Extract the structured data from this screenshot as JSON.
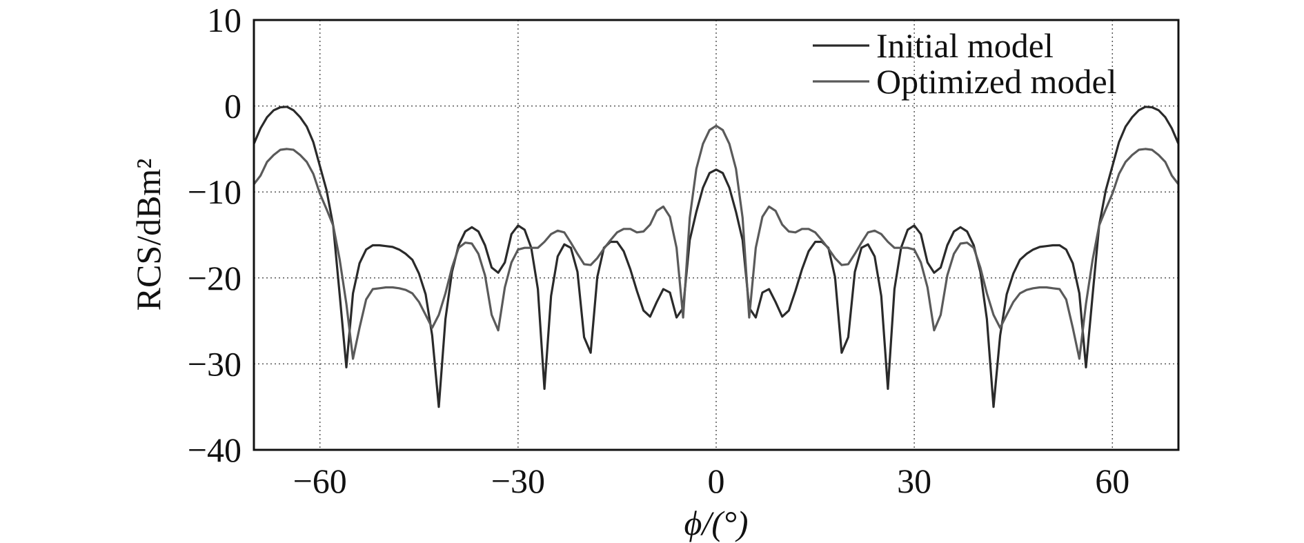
{
  "chart_data": {
    "type": "line",
    "xlabel": "ϕ/(°)",
    "ylabel": "RCS/dBm²",
    "xlim": [
      -70,
      70
    ],
    "ylim": [
      -40,
      10
    ],
    "xticks": [
      -60,
      -30,
      0,
      30,
      60
    ],
    "xtick_labels": [
      "−60",
      "−30",
      "0",
      "30",
      "60"
    ],
    "yticks": [
      10,
      0,
      -10,
      -20,
      -30,
      -40
    ],
    "ytick_labels": [
      "10",
      "0",
      "−10",
      "−20",
      "−30",
      "−40"
    ],
    "grid": true,
    "grid_style": "dotted",
    "legend_position": "top-right",
    "x": [
      -70,
      -69,
      -68,
      -67,
      -66,
      -65,
      -64,
      -63,
      -62,
      -61,
      -60,
      -59,
      -58,
      -57,
      -56,
      -55,
      -54,
      -53,
      -52,
      -51,
      -50,
      -49,
      -48,
      -47,
      -46,
      -45,
      -44,
      -43,
      -42,
      -41,
      -40,
      -39,
      -38,
      -37,
      -36,
      -35,
      -34,
      -33,
      -32,
      -31,
      -30,
      -29,
      -28,
      -27,
      -26,
      -25,
      -24,
      -23,
      -22,
      -21,
      -20,
      -19,
      -18,
      -17,
      -16,
      -15,
      -14,
      -13,
      -12,
      -11,
      -10,
      -9,
      -8,
      -7,
      -6,
      -5,
      -4,
      -3,
      -2,
      -1,
      0,
      1,
      2,
      3,
      4,
      5,
      6,
      7,
      8,
      9,
      10,
      11,
      12,
      13,
      14,
      15,
      16,
      17,
      18,
      19,
      20,
      21,
      22,
      23,
      24,
      25,
      26,
      27,
      28,
      29,
      30,
      31,
      32,
      33,
      34,
      35,
      36,
      37,
      38,
      39,
      40,
      41,
      42,
      43,
      44,
      45,
      46,
      47,
      48,
      49,
      50,
      51,
      52,
      53,
      54,
      55,
      56,
      57,
      58,
      59,
      60,
      61,
      62,
      63,
      64,
      65,
      66,
      67,
      68,
      69,
      70
    ],
    "series": [
      {
        "name": "Initial model",
        "color": "#2a2a2a",
        "values": [
          -4.4,
          -2.6,
          -1.3,
          -0.5,
          -0.15,
          -0.1,
          -0.5,
          -1.3,
          -2.4,
          -4.2,
          -7,
          -9.8,
          -13.9,
          -22,
          -30.4,
          -21.8,
          -18.3,
          -16.7,
          -16.2,
          -16.2,
          -16.3,
          -16.4,
          -16.7,
          -17.2,
          -17.9,
          -19.5,
          -21.9,
          -26.7,
          -35,
          -24.8,
          -19.3,
          -16.2,
          -14.6,
          -14.1,
          -14.6,
          -16.2,
          -18.8,
          -19.4,
          -18.2,
          -14.9,
          -13.9,
          -14.4,
          -16.5,
          -21.3,
          -32.9,
          -22.1,
          -17.5,
          -16.1,
          -16.5,
          -19.3,
          -26.9,
          -28.7,
          -19.9,
          -16.5,
          -15.8,
          -15.8,
          -16.9,
          -19,
          -21.5,
          -23.8,
          -24.5,
          -22.8,
          -21.3,
          -21.7,
          -24.6,
          -23.5,
          -15.6,
          -12.3,
          -9.5,
          -7.8,
          -7.4,
          -7.8,
          -9.5,
          -12.3,
          -15.6,
          -23.5,
          -24.6,
          -21.7,
          -21.3,
          -22.8,
          -24.5,
          -23.8,
          -21.5,
          -19,
          -16.9,
          -15.8,
          -15.8,
          -16.5,
          -19.9,
          -28.7,
          -26.9,
          -19.3,
          -16.5,
          -16.1,
          -17.5,
          -22.1,
          -32.9,
          -21.3,
          -16.5,
          -14.4,
          -13.9,
          -14.9,
          -18.2,
          -19.4,
          -18.8,
          -16.2,
          -14.6,
          -14.1,
          -14.6,
          -16.2,
          -19.3,
          -24.8,
          -35,
          -26.7,
          -21.9,
          -19.5,
          -17.9,
          -17.2,
          -16.7,
          -16.4,
          -16.3,
          -16.2,
          -16.2,
          -16.7,
          -18.3,
          -21.8,
          -30.4,
          -22,
          -13.9,
          -9.8,
          -7,
          -4.2,
          -2.4,
          -1.3,
          -0.5,
          -0.1,
          -0.15,
          -0.5,
          -1.3,
          -2.6,
          -4.4
        ]
      },
      {
        "name": "Optimized model",
        "color": "#5a5a5a",
        "values": [
          -9.1,
          -8.1,
          -6.5,
          -5.7,
          -5.1,
          -5,
          -5.1,
          -5.7,
          -6.5,
          -7.9,
          -10.2,
          -12,
          -13.9,
          -17.9,
          -23,
          -29.4,
          -25.8,
          -22.5,
          -21.3,
          -21.2,
          -21.1,
          -21.1,
          -21.2,
          -21.4,
          -21.8,
          -22.8,
          -24.3,
          -25.8,
          -24.3,
          -21.8,
          -18.8,
          -16.5,
          -15.9,
          -16,
          -17.2,
          -19.7,
          -24.3,
          -26.1,
          -21.1,
          -18.2,
          -16.7,
          -16.5,
          -16.5,
          -16.5,
          -15.8,
          -14.9,
          -14.5,
          -14.7,
          -15.9,
          -17.2,
          -18.4,
          -18.5,
          -17.7,
          -16.6,
          -15.6,
          -14.7,
          -14.3,
          -14.3,
          -14.7,
          -14.6,
          -13.8,
          -12.2,
          -11.7,
          -12.9,
          -16.5,
          -24.6,
          -13,
          -7.3,
          -4.4,
          -2.8,
          -2.3,
          -2.8,
          -4.4,
          -7.3,
          -13,
          -24.6,
          -16.5,
          -12.9,
          -11.7,
          -12.2,
          -13.8,
          -14.6,
          -14.7,
          -14.3,
          -14.3,
          -14.7,
          -15.6,
          -16.6,
          -17.7,
          -18.5,
          -18.4,
          -17.2,
          -15.9,
          -14.7,
          -14.5,
          -14.9,
          -15.8,
          -16.5,
          -16.5,
          -16.5,
          -16.7,
          -18.2,
          -21.1,
          -26.1,
          -24.3,
          -19.7,
          -17.2,
          -16,
          -15.9,
          -16.5,
          -18.8,
          -21.8,
          -24.3,
          -25.8,
          -24.3,
          -22.8,
          -21.8,
          -21.4,
          -21.2,
          -21.1,
          -21.1,
          -21.2,
          -21.3,
          -22.5,
          -25.8,
          -29.4,
          -23,
          -17.9,
          -13.9,
          -12,
          -10.2,
          -7.9,
          -6.5,
          -5.7,
          -5.1,
          -5,
          -5.1,
          -5.7,
          -6.5,
          -8.1,
          -9.1
        ]
      }
    ]
  }
}
